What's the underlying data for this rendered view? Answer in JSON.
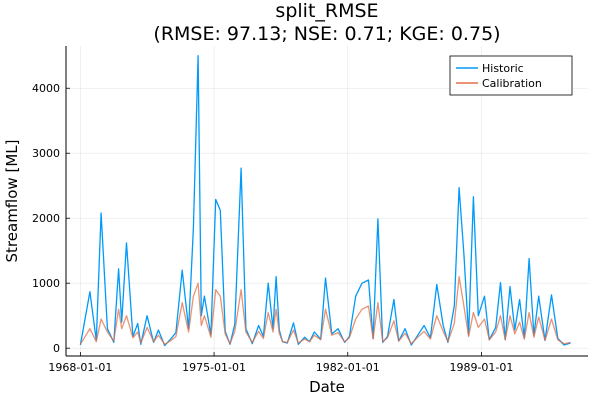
{
  "chart_data": {
    "type": "line",
    "title_line1": "split_RMSE",
    "title_line2": "(RMSE: 97.13; NSE: 0.71; KGE: 0.75)",
    "xlabel": "Date",
    "ylabel": "Streamflow [ML]",
    "x_ticks": [
      "1968-01-01",
      "1975-01-01",
      "1982-01-01",
      "1989-01-01"
    ],
    "y_ticks": [
      0,
      1000,
      2000,
      3000,
      4000
    ],
    "xlim": [
      "1967-04-01",
      "1994-08-01"
    ],
    "ylim": [
      -120,
      4650
    ],
    "grid": true,
    "legend_position": "top-right",
    "colors": {
      "Historic": "#009af9",
      "Calibration": "#e26f46"
    },
    "series": [
      {
        "name": "Historic",
        "x": [
          "1968-01-01",
          "1968-07-01",
          "1968-11-01",
          "1969-02-01",
          "1969-06-01",
          "1969-10-01",
          "1970-01-01",
          "1970-03-01",
          "1970-06-01",
          "1970-10-01",
          "1971-01-01",
          "1971-03-01",
          "1971-07-01",
          "1971-11-01",
          "1972-02-01",
          "1972-06-01",
          "1972-10-01",
          "1973-01-01",
          "1973-05-01",
          "1973-09-01",
          "1973-12-01",
          "1974-03-01",
          "1974-05-01",
          "1974-07-01",
          "1974-11-01",
          "1975-02-01",
          "1975-05-01",
          "1975-08-01",
          "1975-11-01",
          "1976-02-01",
          "1976-06-01",
          "1976-09-01",
          "1977-01-01",
          "1977-05-01",
          "1977-08-01",
          "1977-11-01",
          "1978-02-01",
          "1978-04-01",
          "1978-06-01",
          "1978-08-01",
          "1978-11-01",
          "1979-03-01",
          "1979-06-01",
          "1979-10-01",
          "1980-01-01",
          "1980-04-01",
          "1980-08-01",
          "1980-11-01",
          "1981-03-01",
          "1981-07-01",
          "1981-11-01",
          "1982-02-01",
          "1982-06-01",
          "1982-10-01",
          "1983-02-01",
          "1983-05-01",
          "1983-08-01",
          "1983-11-01",
          "1984-02-01",
          "1984-06-01",
          "1984-09-01",
          "1985-01-01",
          "1985-05-01",
          "1985-09-01",
          "1986-01-01",
          "1986-05-01",
          "1986-09-01",
          "1987-01-01",
          "1987-04-01",
          "1987-08-01",
          "1987-11-01",
          "1988-02-01",
          "1988-05-01",
          "1988-08-01",
          "1988-11-01",
          "1989-03-01",
          "1989-06-01",
          "1989-10-01",
          "1990-01-01",
          "1990-04-01",
          "1990-07-01",
          "1990-10-01",
          "1991-01-01",
          "1991-04-01",
          "1991-07-01",
          "1991-10-01",
          "1992-01-01",
          "1992-05-01",
          "1992-09-01",
          "1993-01-01",
          "1993-05-01",
          "1993-09-01"
        ],
        "y": [
          50,
          870,
          120,
          2080,
          300,
          90,
          1220,
          400,
          1620,
          180,
          380,
          60,
          500,
          90,
          280,
          40,
          150,
          240,
          1200,
          300,
          1850,
          4500,
          500,
          800,
          200,
          2290,
          2120,
          260,
          60,
          370,
          2770,
          300,
          70,
          350,
          180,
          1000,
          300,
          1100,
          280,
          100,
          80,
          390,
          60,
          170,
          100,
          250,
          140,
          1080,
          220,
          300,
          90,
          180,
          800,
          1000,
          1050,
          150,
          1990,
          90,
          180,
          750,
          110,
          300,
          50,
          200,
          350,
          160,
          980,
          350,
          90,
          650,
          2470,
          1450,
          200,
          2330,
          500,
          800,
          130,
          320,
          1010,
          130,
          950,
          280,
          750,
          160,
          1380,
          200,
          800,
          120,
          820,
          150,
          50,
          80
        ]
      },
      {
        "name": "Calibration",
        "x": [
          "1968-01-01",
          "1968-07-01",
          "1968-11-01",
          "1969-02-01",
          "1969-06-01",
          "1969-10-01",
          "1970-01-01",
          "1970-03-01",
          "1970-06-01",
          "1970-10-01",
          "1971-01-01",
          "1971-03-01",
          "1971-07-01",
          "1971-11-01",
          "1972-02-01",
          "1972-06-01",
          "1972-10-01",
          "1973-01-01",
          "1973-05-01",
          "1973-09-01",
          "1973-12-01",
          "1974-03-01",
          "1974-05-01",
          "1974-07-01",
          "1974-11-01",
          "1975-02-01",
          "1975-05-01",
          "1975-08-01",
          "1975-11-01",
          "1976-02-01",
          "1976-06-01",
          "1976-09-01",
          "1977-01-01",
          "1977-05-01",
          "1977-08-01",
          "1977-11-01",
          "1978-02-01",
          "1978-04-01",
          "1978-06-01",
          "1978-08-01",
          "1978-11-01",
          "1979-03-01",
          "1979-06-01",
          "1979-10-01",
          "1980-01-01",
          "1980-04-01",
          "1980-08-01",
          "1980-11-01",
          "1981-03-01",
          "1981-07-01",
          "1981-11-01",
          "1982-02-01",
          "1982-06-01",
          "1982-10-01",
          "1983-02-01",
          "1983-05-01",
          "1983-08-01",
          "1983-11-01",
          "1984-02-01",
          "1984-06-01",
          "1984-09-01",
          "1985-01-01",
          "1985-05-01",
          "1985-09-01",
          "1986-01-01",
          "1986-05-01",
          "1986-09-01",
          "1987-01-01",
          "1987-04-01",
          "1987-08-01",
          "1987-11-01",
          "1988-02-01",
          "1988-05-01",
          "1988-08-01",
          "1988-11-01",
          "1989-03-01",
          "1989-06-01",
          "1989-10-01",
          "1990-01-01",
          "1990-04-01",
          "1990-07-01",
          "1990-10-01",
          "1991-01-01",
          "1991-04-01",
          "1991-07-01",
          "1991-10-01",
          "1992-01-01",
          "1992-05-01",
          "1992-09-01",
          "1993-01-01",
          "1993-05-01",
          "1993-09-01"
        ],
        "y": [
          60,
          300,
          100,
          450,
          250,
          110,
          600,
          300,
          500,
          160,
          250,
          80,
          320,
          100,
          200,
          60,
          120,
          180,
          700,
          250,
          800,
          1000,
          350,
          500,
          170,
          900,
          800,
          220,
          70,
          260,
          900,
          250,
          90,
          260,
          150,
          550,
          250,
          600,
          230,
          100,
          90,
          280,
          80,
          140,
          100,
          200,
          130,
          600,
          200,
          240,
          100,
          160,
          450,
          600,
          650,
          140,
          700,
          100,
          160,
          420,
          110,
          230,
          70,
          170,
          260,
          140,
          500,
          260,
          100,
          380,
          1100,
          650,
          180,
          550,
          320,
          450,
          130,
          250,
          500,
          130,
          500,
          220,
          400,
          140,
          550,
          170,
          480,
          120,
          450,
          130,
          70,
          90
        ]
      }
    ]
  }
}
